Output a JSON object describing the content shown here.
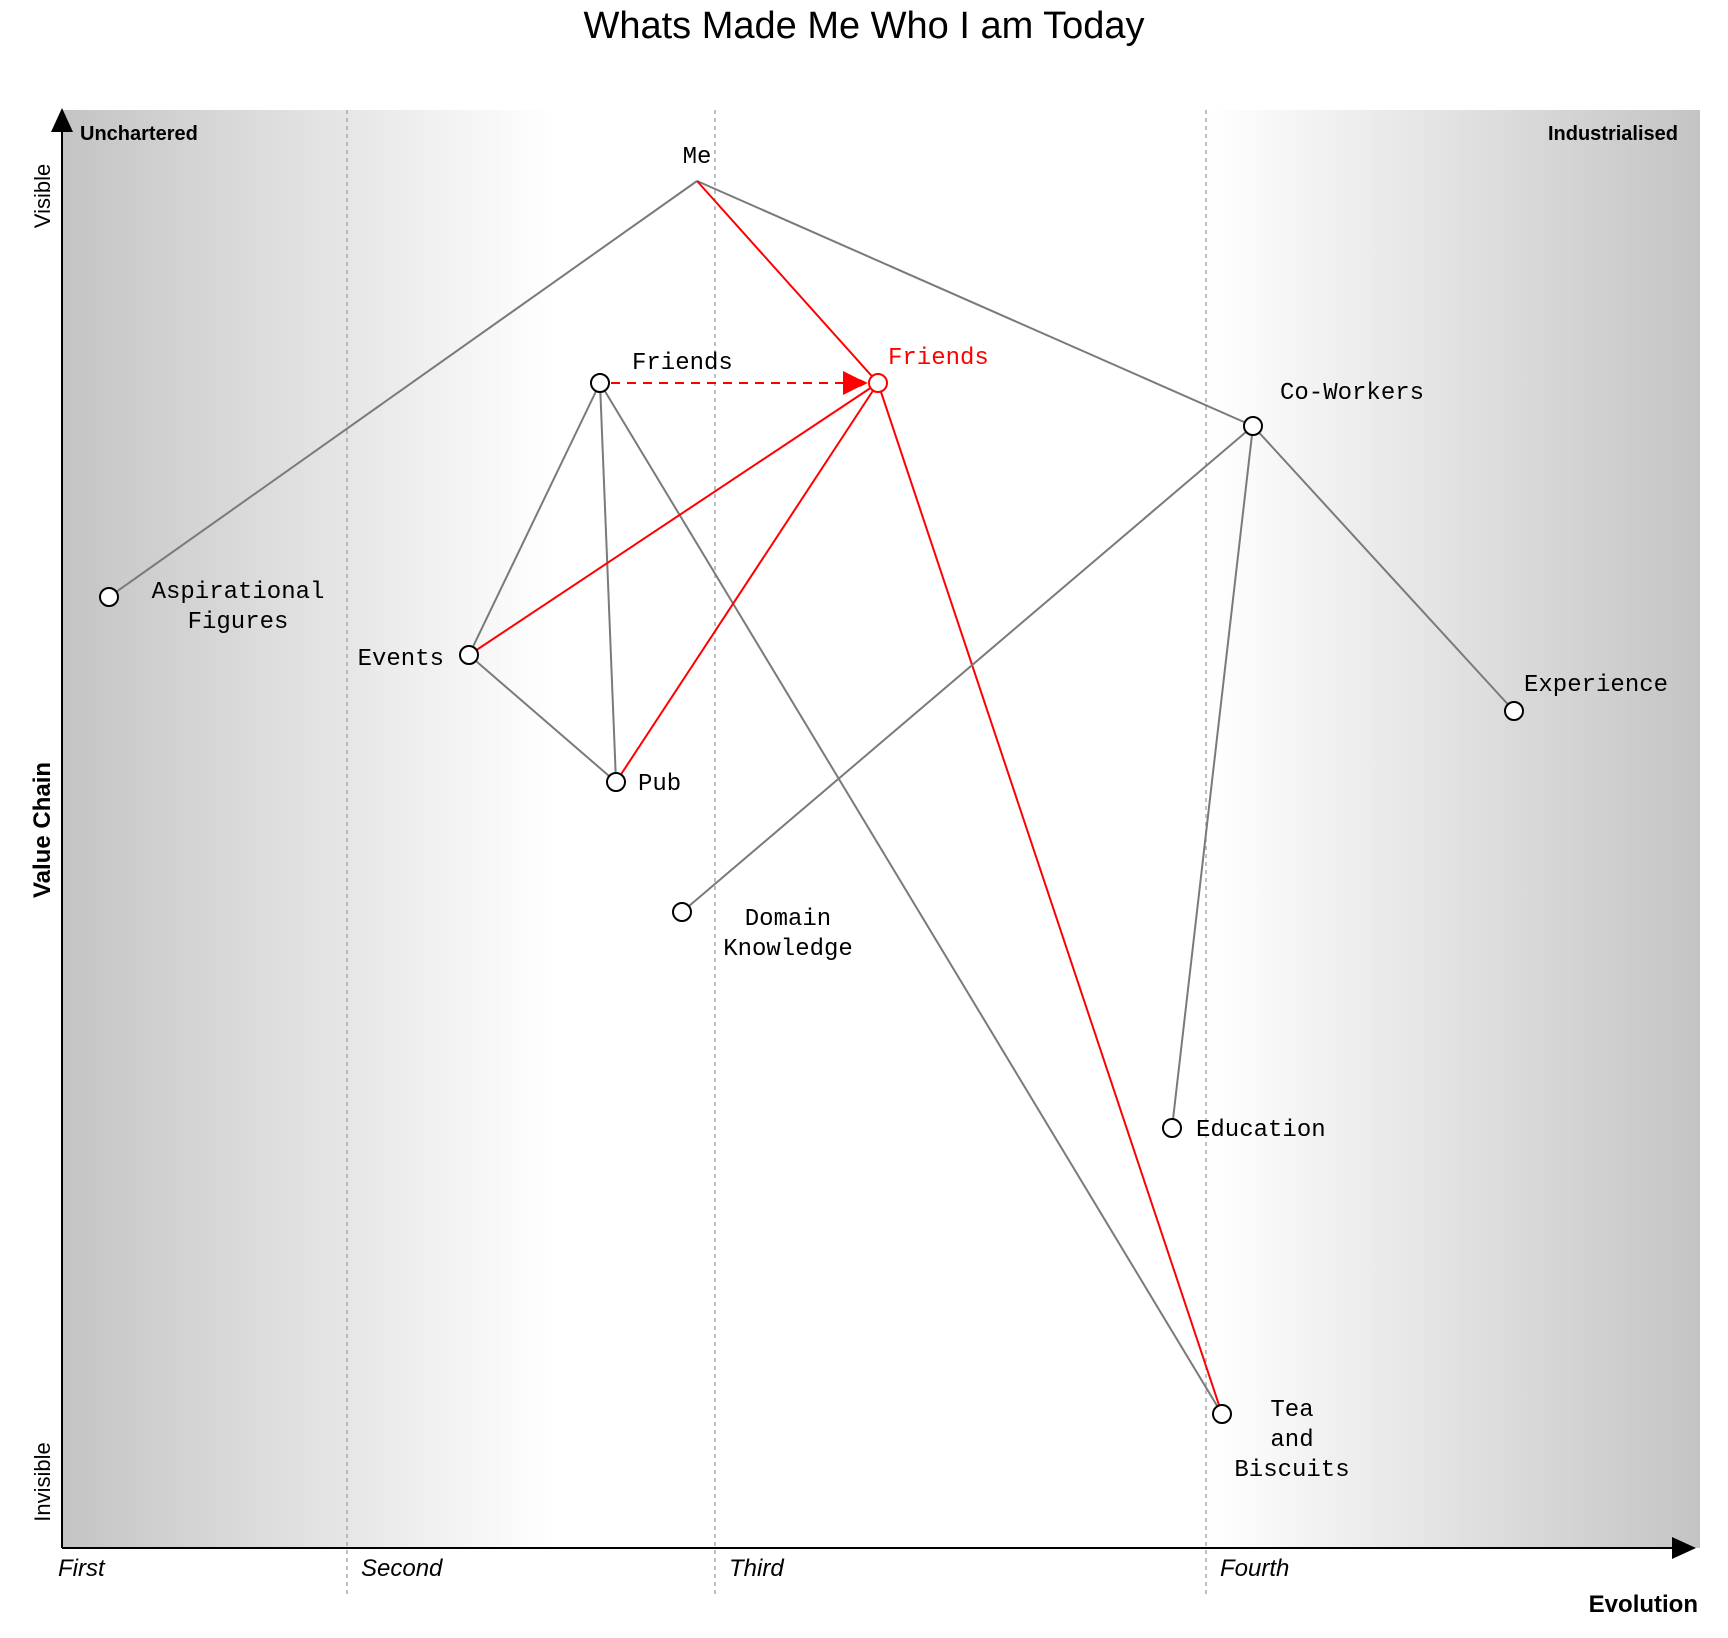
{
  "title": "Whats Made Me Who I am Today",
  "corner_labels": {
    "left": "Unchartered",
    "right": "Industrialised"
  },
  "axes": {
    "y_label": "Value Chain",
    "y_top": "Visible",
    "y_bottom": "Invisible",
    "x_label": "Evolution",
    "stages": [
      "First",
      "Second",
      "Third",
      "Fourth"
    ]
  },
  "colors": {
    "link": "#7a7a7a",
    "highlight": "#ff0000"
  },
  "components": [
    {
      "id": "me",
      "label": [
        "Me"
      ],
      "anchor": true
    },
    {
      "id": "friends",
      "label": [
        "Friends"
      ]
    },
    {
      "id": "friends_evolved",
      "label": [
        "Friends"
      ],
      "highlight": true
    },
    {
      "id": "coworkers",
      "label": [
        "Co-Workers"
      ]
    },
    {
      "id": "aspirational",
      "label": [
        "Aspirational",
        "Figures"
      ]
    },
    {
      "id": "events",
      "label": [
        "Events"
      ]
    },
    {
      "id": "experience",
      "label": [
        "Experience"
      ]
    },
    {
      "id": "pub",
      "label": [
        "Pub"
      ]
    },
    {
      "id": "domain",
      "label": [
        "Domain",
        "Knowledge"
      ]
    },
    {
      "id": "education",
      "label": [
        "Education"
      ]
    },
    {
      "id": "tea",
      "label": [
        "Tea",
        "and",
        "Biscuits"
      ]
    }
  ],
  "links": [
    {
      "from": "me",
      "to": "aspirational"
    },
    {
      "from": "me",
      "to": "coworkers"
    },
    {
      "from": "me",
      "to": "friends_evolved",
      "highlight": true
    },
    {
      "from": "friends",
      "to": "events"
    },
    {
      "from": "friends",
      "to": "pub"
    },
    {
      "from": "friends",
      "to": "tea"
    },
    {
      "from": "events",
      "to": "pub"
    },
    {
      "from": "friends_evolved",
      "to": "events",
      "highlight": true
    },
    {
      "from": "friends_evolved",
      "to": "pub",
      "highlight": true
    },
    {
      "from": "friends_evolved",
      "to": "tea",
      "highlight": true
    },
    {
      "from": "coworkers",
      "to": "domain"
    },
    {
      "from": "coworkers",
      "to": "education"
    },
    {
      "from": "coworkers",
      "to": "experience"
    }
  ],
  "evolve": {
    "from": "friends",
    "to": "friends_evolved"
  }
}
